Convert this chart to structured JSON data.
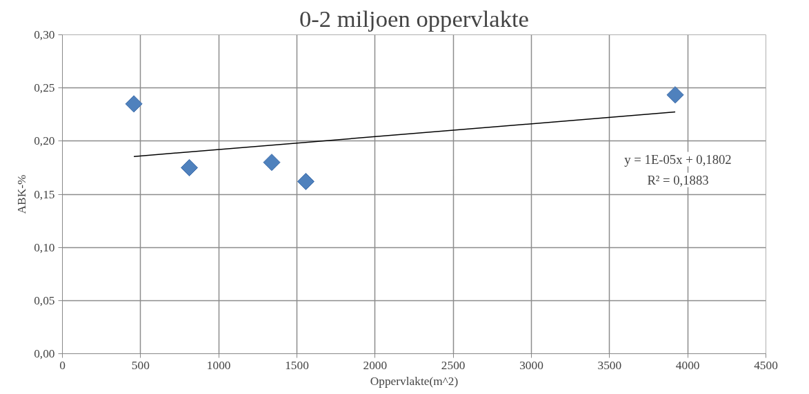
{
  "chart_data": {
    "type": "scatter",
    "title": "0-2 miljoen oppervlakte",
    "xlabel": "Oppervlakte(m^2)",
    "ylabel": "ABK-%",
    "x": [
      457,
      812,
      1339,
      1557,
      3920
    ],
    "series": [
      {
        "color": "#4f81bd",
        "marker": "diamond",
        "values": [
          0.235,
          0.175,
          0.18,
          0.162,
          0.2435
        ]
      },
      {
        "type": "line",
        "color": "#000000",
        "x": [
          457,
          3920
        ],
        "values": [
          0.1855,
          0.2274
        ],
        "marker": "none"
      }
    ],
    "annotations": [
      "y = 1E-05x + 0,1802",
      "R² = 0,1883"
    ],
    "xlim": [
      0,
      4500
    ],
    "xticks": [
      0,
      500,
      1000,
      1500,
      2000,
      2500,
      3000,
      3500,
      4000,
      4500
    ],
    "ylim": [
      0,
      0.3
    ],
    "yticks": [
      {
        "value": 0,
        "label": "0,00"
      },
      {
        "value": 0.05,
        "label": "0,05"
      },
      {
        "value": 0.1,
        "label": "0,10"
      },
      {
        "value": 0.15,
        "label": "0,15"
      },
      {
        "value": 0.2,
        "label": "0,20"
      },
      {
        "value": 0.25,
        "label": "0,25"
      },
      {
        "value": 0.3,
        "label": "0,30"
      }
    ],
    "grid": true
  }
}
